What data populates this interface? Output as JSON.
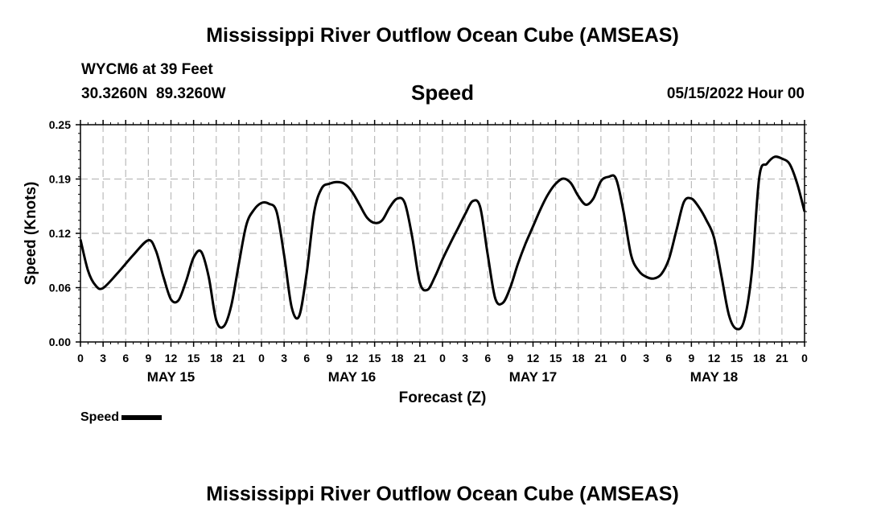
{
  "header": {
    "title": "Mississippi River Outflow Ocean Cube (AMSEAS)",
    "station": "WYCM6 at 39 Feet",
    "coords": "30.3260N  89.3260W",
    "variable": "Speed",
    "datetime": "05/15/2022 Hour 00"
  },
  "footer": {
    "title": "Mississippi River Outflow Ocean Cube (AMSEAS)"
  },
  "legend": {
    "label": "Speed"
  },
  "chart_data": {
    "type": "line",
    "title": "Speed",
    "xlabel": "Forecast (Z)",
    "ylabel": "Speed (Knots)",
    "ylim": [
      0,
      0.25
    ],
    "yticks": [
      "0.00",
      "0.06",
      "0.12",
      "0.19",
      "0.25"
    ],
    "xlim": [
      0,
      96
    ],
    "xtick_hours": [
      0,
      3,
      6,
      9,
      12,
      15,
      18,
      21,
      24,
      27,
      30,
      33,
      36,
      39,
      42,
      45,
      48,
      51,
      54,
      57,
      60,
      63,
      66,
      69,
      72,
      75,
      78,
      81,
      84,
      87,
      90,
      93,
      96
    ],
    "xtick_labels": [
      "0",
      "3",
      "6",
      "9",
      "12",
      "15",
      "18",
      "21",
      "0",
      "3",
      "6",
      "9",
      "12",
      "15",
      "18",
      "21",
      "0",
      "3",
      "6",
      "9",
      "12",
      "15",
      "18",
      "21",
      "0",
      "3",
      "6",
      "9",
      "12",
      "15",
      "18",
      "21",
      "0"
    ],
    "day_labels": [
      {
        "label": "MAY 15",
        "hour": 12
      },
      {
        "label": "MAY 16",
        "hour": 36
      },
      {
        "label": "MAY 17",
        "hour": 60
      },
      {
        "label": "MAY 18",
        "hour": 84
      }
    ],
    "grid": true,
    "series": [
      {
        "name": "Speed",
        "color": "#000000",
        "hours": [
          0,
          1,
          2,
          3,
          5,
          7,
          9,
          10,
          11,
          12,
          13,
          14,
          15,
          16,
          17,
          18,
          19,
          20,
          21,
          22,
          23,
          24,
          25,
          26,
          27,
          28,
          29,
          30,
          31,
          32,
          33,
          34,
          35,
          36,
          37,
          38,
          39,
          40,
          41,
          42,
          43,
          44,
          45,
          46,
          47,
          48,
          49,
          50,
          51,
          52,
          53,
          54,
          55,
          56,
          57,
          58,
          59,
          60,
          61,
          62,
          63,
          64,
          65,
          66,
          67,
          68,
          69,
          70,
          71,
          72,
          73,
          74,
          75,
          76,
          77,
          78,
          79,
          80,
          81,
          82,
          83,
          84,
          85,
          86,
          87,
          88,
          89,
          90,
          91,
          92,
          93,
          94,
          95,
          96
        ],
        "values": [
          0.118,
          0.082,
          0.065,
          0.062,
          0.08,
          0.1,
          0.117,
          0.105,
          0.075,
          0.049,
          0.048,
          0.07,
          0.097,
          0.104,
          0.075,
          0.025,
          0.018,
          0.042,
          0.09,
          0.135,
          0.152,
          0.16,
          0.159,
          0.15,
          0.1,
          0.04,
          0.03,
          0.08,
          0.15,
          0.177,
          0.182,
          0.184,
          0.182,
          0.173,
          0.158,
          0.143,
          0.137,
          0.14,
          0.155,
          0.165,
          0.16,
          0.12,
          0.068,
          0.06,
          0.075,
          0.095,
          0.113,
          0.13,
          0.147,
          0.162,
          0.155,
          0.1,
          0.05,
          0.045,
          0.063,
          0.09,
          0.113,
          0.133,
          0.153,
          0.17,
          0.182,
          0.188,
          0.183,
          0.168,
          0.158,
          0.165,
          0.185,
          0.19,
          0.188,
          0.15,
          0.1,
          0.082,
          0.075,
          0.073,
          0.078,
          0.095,
          0.128,
          0.161,
          0.165,
          0.155,
          0.14,
          0.12,
          0.075,
          0.03,
          0.015,
          0.025,
          0.08,
          0.19,
          0.205,
          0.213,
          0.211,
          0.205,
          0.183,
          0.15
        ]
      }
    ]
  }
}
